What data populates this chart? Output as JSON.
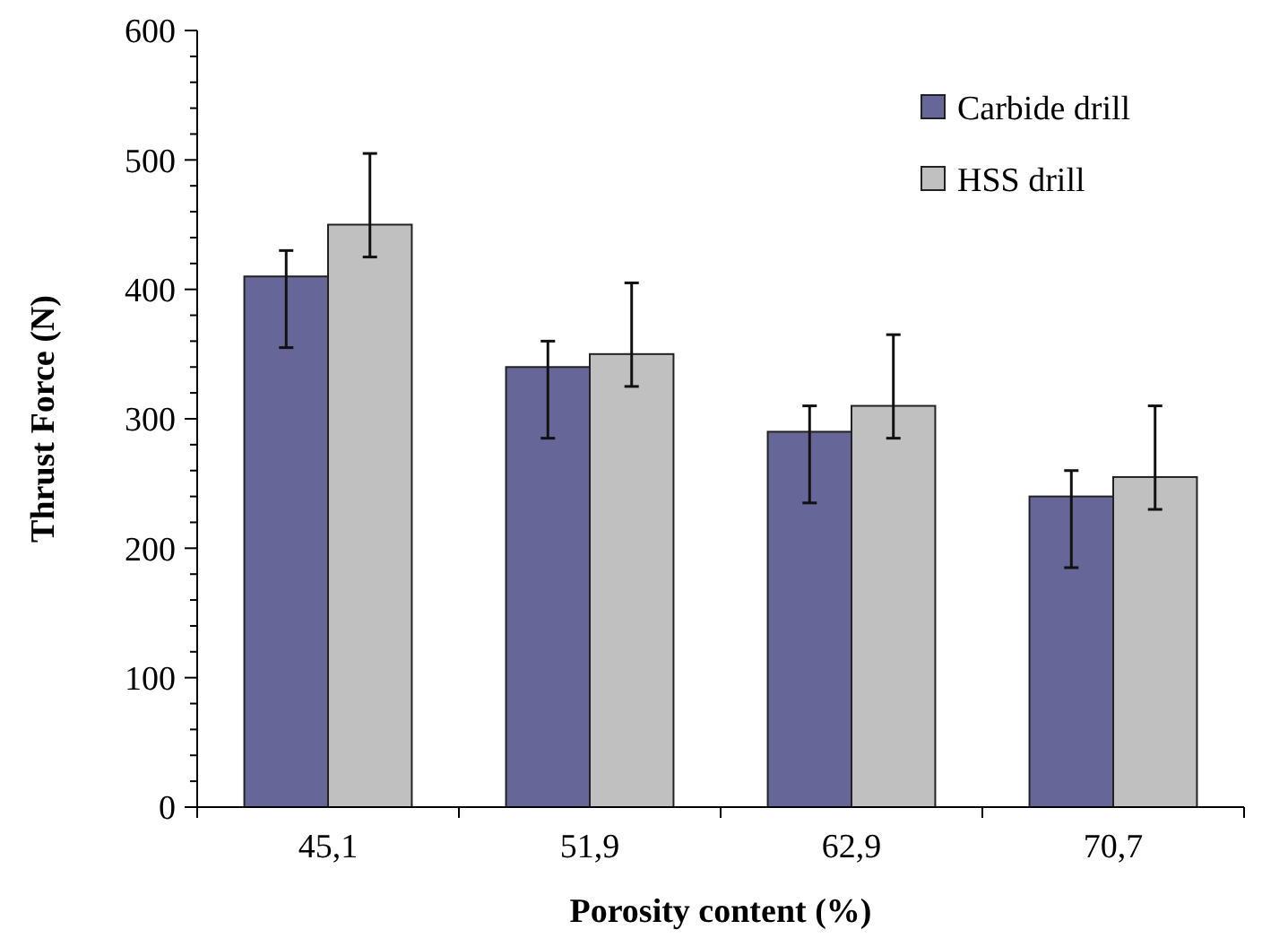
{
  "chart_data": {
    "type": "bar",
    "xlabel": "Porosity content (%)",
    "ylabel": "Thrust Force (N)",
    "categories": [
      "45,1",
      "51,9",
      "62,9",
      "70,7"
    ],
    "series": [
      {
        "name": "Carbide drill",
        "color": "#666699",
        "values": [
          410,
          340,
          290,
          240
        ],
        "errors": [
          [
            355,
            430
          ],
          [
            285,
            360
          ],
          [
            235,
            310
          ],
          [
            185,
            260
          ]
        ]
      },
      {
        "name": "HSS drill",
        "color": "#c0c0c0",
        "values": [
          450,
          350,
          310,
          255
        ],
        "errors": [
          [
            425,
            505
          ],
          [
            325,
            405
          ],
          [
            285,
            365
          ],
          [
            230,
            310
          ]
        ]
      }
    ],
    "ylim": [
      0,
      600
    ],
    "yticks": [
      0,
      {
        "value": 20,
        "label": null
      },
      {
        "value": 40,
        "label": null
      },
      {
        "value": 60,
        "label": null
      },
      {
        "value": 80,
        "label": null
      },
      100,
      {
        "value": 120,
        "label": null
      },
      {
        "value": 140,
        "label": null
      },
      {
        "value": 160,
        "label": null
      },
      {
        "value": 180,
        "label": null
      },
      200,
      {
        "value": 220,
        "label": null
      },
      {
        "value": 240,
        "label": null
      },
      {
        "value": 260,
        "label": null
      },
      {
        "value": 280,
        "label": null
      },
      300,
      {
        "value": 320,
        "label": null
      },
      {
        "value": 340,
        "label": null
      },
      {
        "value": 360,
        "label": null
      },
      {
        "value": 380,
        "label": null
      },
      400,
      {
        "value": 420,
        "label": null
      },
      {
        "value": 440,
        "label": null
      },
      {
        "value": 460,
        "label": null
      },
      {
        "value": 480,
        "label": null
      },
      500,
      {
        "value": 520,
        "label": null
      },
      {
        "value": 540,
        "label": null
      },
      {
        "value": 560,
        "label": null
      },
      {
        "value": 580,
        "label": null
      },
      600
    ],
    "grid": false,
    "legend": "top right"
  }
}
